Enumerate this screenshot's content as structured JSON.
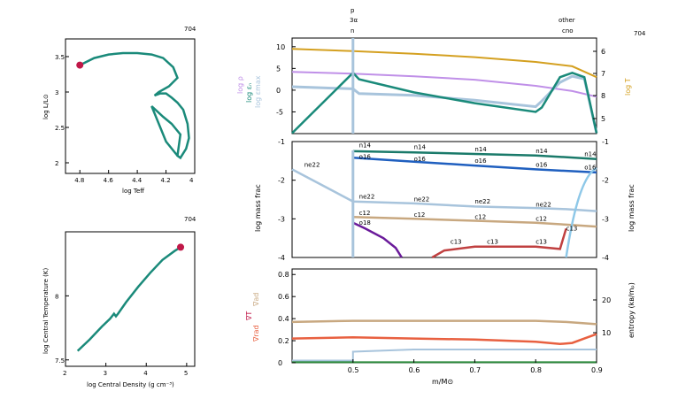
{
  "model_number": "704",
  "top_markers": {
    "line1": "p",
    "line2": "3α",
    "line3": "n",
    "right1": "other",
    "right2": "cno"
  },
  "hr_panel": {
    "xlabel": "log Teff",
    "ylabel": "log L/L⊙",
    "xticks": [
      "4.8",
      "4.6",
      "4.4",
      "4.2",
      "4"
    ],
    "yticks": [
      "3.5",
      "3",
      "2.5",
      "2"
    ]
  },
  "rhoT_panel": {
    "xlabel": "log Central Density (g cm⁻³)",
    "ylabel": "log Central Temperature (K)",
    "xticks": [
      "2",
      "3",
      "4",
      "5"
    ],
    "yticks": [
      "8",
      "7.5"
    ]
  },
  "profile_panel": {
    "left_labels": [
      "log ρ",
      "log εₙ",
      "log εmax"
    ],
    "right_label": "log T",
    "yticks_left": [
      "10",
      "5",
      "0",
      "-5"
    ],
    "yticks_right": [
      "6",
      "7",
      "8",
      "5"
    ]
  },
  "abund_panel": {
    "ylabel_left": "log mass frac",
    "ylabel_right": "log mass frac",
    "yticks": [
      "-1",
      "-2",
      "-3",
      "-4"
    ],
    "species_labels": [
      {
        "t": "n14",
        "c": "#1a7a6a"
      },
      {
        "t": "o16",
        "c": "#1f5fbf"
      },
      {
        "t": "ne22",
        "c": "#9fb8d0"
      },
      {
        "t": "c12",
        "c": "#c89a70"
      },
      {
        "t": "o18",
        "c": "#6a1a9a"
      },
      {
        "t": "c13",
        "c": "#c04040"
      }
    ]
  },
  "grad_panel": {
    "left_top": "∇ad",
    "left_mid": "∇T",
    "left_bot": "∇rad",
    "right_label": "entropy (kʙ/mₚ)",
    "yticks_left": [
      "0.8",
      "0.6",
      "0.4",
      "0.2",
      "0"
    ],
    "yticks_right": [
      "20",
      "10"
    ],
    "xlabel": "m/M⊙",
    "xticks": [
      "0.5",
      "0.6",
      "0.7",
      "0.8",
      "0.9"
    ]
  },
  "colors": {
    "teal": "#1a8a7a",
    "red": "#c01848",
    "gold": "#d4a020",
    "purple": "#c090e8",
    "lightblue": "#a8c4dc",
    "tan": "#c8a880",
    "orange": "#e86040"
  },
  "chart_data": [
    {
      "type": "line",
      "title": "",
      "xlabel": "log Teff",
      "ylabel": "log L/L⊙",
      "xlim": [
        4.9,
        4.0
      ],
      "ylim": [
        1.85,
        3.75
      ],
      "series": [
        {
          "x": [
            4.8,
            4.7,
            4.6,
            4.5,
            4.4,
            4.3,
            4.22,
            4.15,
            4.12,
            4.18,
            4.25,
            4.28,
            4.24,
            4.2,
            4.16,
            4.12,
            4.08,
            4.05,
            4.04,
            4.06,
            4.1,
            4.12,
            4.1,
            4.16,
            4.22,
            4.3,
            4.2,
            4.12
          ],
          "y": [
            3.38,
            3.48,
            3.53,
            3.55,
            3.55,
            3.53,
            3.48,
            3.35,
            3.2,
            3.08,
            3.0,
            2.95,
            2.98,
            2.98,
            2.92,
            2.85,
            2.75,
            2.55,
            2.35,
            2.2,
            2.07,
            2.1,
            2.4,
            2.55,
            2.65,
            2.8,
            2.3,
            2.1
          ]
        }
      ],
      "marker": {
        "x": 4.8,
        "y": 3.38
      }
    },
    {
      "type": "line",
      "title": "",
      "xlabel": "log Central Density",
      "ylabel": "log Central Temperature",
      "xlim": [
        2.0,
        5.2
      ],
      "ylim": [
        7.45,
        8.5
      ],
      "series": [
        {
          "x": [
            2.3,
            2.6,
            2.9,
            3.1,
            3.2,
            3.25,
            3.3,
            3.5,
            3.8,
            4.1,
            4.4,
            4.7,
            4.85
          ],
          "y": [
            7.57,
            7.66,
            7.76,
            7.82,
            7.86,
            7.84,
            7.86,
            7.95,
            8.07,
            8.18,
            8.28,
            8.35,
            8.38
          ]
        }
      ],
      "marker": {
        "x": 4.85,
        "y": 8.38
      }
    },
    {
      "type": "line",
      "title": "",
      "xlim": [
        0.4,
        0.9
      ],
      "ylim": [
        -10,
        12
      ],
      "series": [
        {
          "name": "log T",
          "x": [
            0.4,
            0.5,
            0.6,
            0.7,
            0.8,
            0.86,
            0.9
          ],
          "y": [
            9.5,
            9.0,
            8.4,
            7.6,
            6.5,
            5.5,
            3.0
          ]
        },
        {
          "name": "log ρ",
          "x": [
            0.4,
            0.5,
            0.6,
            0.7,
            0.8,
            0.86,
            0.9
          ],
          "y": [
            4.2,
            3.8,
            3.2,
            2.4,
            1.0,
            -0.2,
            -1.5
          ]
        },
        {
          "name": "log εmax",
          "x": [
            0.4,
            0.5,
            0.51,
            0.6,
            0.7,
            0.8,
            0.81,
            0.84,
            0.86,
            0.88,
            0.9
          ],
          "y": [
            0.8,
            0.3,
            -0.8,
            -1.2,
            -2.3,
            -3.8,
            -2.5,
            1.8,
            3.2,
            2.6,
            -10
          ]
        },
        {
          "name": "log εₙ",
          "x": [
            0.4,
            0.5,
            0.51,
            0.6,
            0.7,
            0.8,
            0.81,
            0.84,
            0.86,
            0.88,
            0.9
          ],
          "y": [
            -12,
            4.0,
            2.5,
            -0.5,
            -3.0,
            -5.0,
            -4.0,
            3.0,
            4.0,
            3.0,
            -10
          ]
        }
      ]
    },
    {
      "type": "line",
      "title": "",
      "xlim": [
        0.4,
        0.9
      ],
      "ylim": [
        -4,
        -1
      ],
      "series": [
        {
          "name": "n14",
          "x": [
            0.5,
            0.6,
            0.7,
            0.8,
            0.9
          ],
          "y": [
            -1.25,
            -1.28,
            -1.32,
            -1.36,
            -1.45
          ]
        },
        {
          "name": "o16",
          "x": [
            0.5,
            0.6,
            0.7,
            0.8,
            0.9
          ],
          "y": [
            -1.42,
            -1.52,
            -1.62,
            -1.72,
            -1.8
          ]
        },
        {
          "name": "ne22",
          "x": [
            0.4,
            0.5,
            0.6,
            0.7,
            0.8,
            0.85,
            0.9
          ],
          "y": [
            -1.72,
            -2.55,
            -2.6,
            -2.68,
            -2.72,
            -2.75,
            -2.8
          ]
        },
        {
          "name": "c12",
          "x": [
            0.5,
            0.6,
            0.7,
            0.8,
            0.85,
            0.9
          ],
          "y": [
            -2.95,
            -3.0,
            -3.05,
            -3.1,
            -3.15,
            -3.2
          ]
        },
        {
          "name": "o18",
          "x": [
            0.5,
            0.52,
            0.55,
            0.57,
            0.58
          ],
          "y": [
            -3.1,
            -3.25,
            -3.5,
            -3.75,
            -4.0
          ]
        },
        {
          "name": "c13",
          "x": [
            0.63,
            0.65,
            0.7,
            0.8,
            0.84,
            0.85
          ],
          "y": [
            -4.0,
            -3.82,
            -3.72,
            -3.72,
            -3.78,
            -3.25
          ]
        }
      ]
    },
    {
      "type": "line",
      "title": "",
      "xlim": [
        0.4,
        0.9
      ],
      "ylim": [
        0,
        0.85
      ],
      "series": [
        {
          "name": "∇ad",
          "x": [
            0.4,
            0.5,
            0.6,
            0.7,
            0.8,
            0.85,
            0.9
          ],
          "y": [
            0.37,
            0.38,
            0.38,
            0.38,
            0.38,
            0.37,
            0.35
          ]
        },
        {
          "name": "∇rad",
          "x": [
            0.4,
            0.5,
            0.6,
            0.7,
            0.8,
            0.84,
            0.86,
            0.88,
            0.9
          ],
          "y": [
            0.22,
            0.23,
            0.22,
            0.21,
            0.19,
            0.17,
            0.18,
            0.22,
            0.26
          ]
        },
        {
          "name": "entropy",
          "x": [
            0.4,
            0.5,
            0.5,
            0.6,
            0.7,
            0.8,
            0.85,
            0.9
          ],
          "y": [
            0.02,
            0.02,
            0.1,
            0.12,
            0.12,
            0.12,
            0.12,
            0.12
          ]
        }
      ]
    }
  ]
}
